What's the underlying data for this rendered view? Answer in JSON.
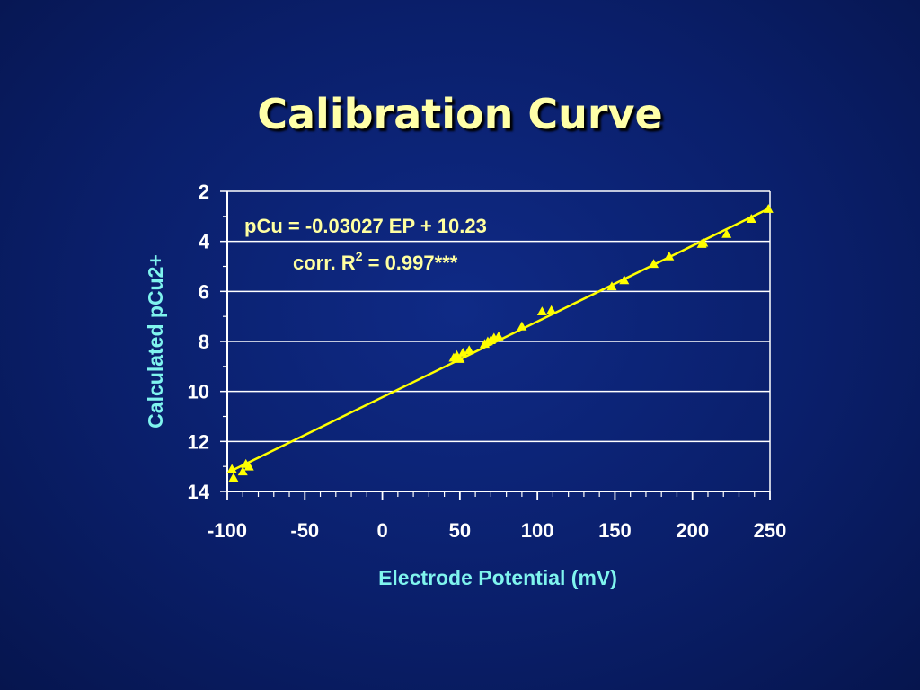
{
  "title": "Calibration Curve",
  "chart_data": {
    "type": "scatter",
    "xlabel": "Electrode Potential (mV)",
    "ylabel": "Calculated pCu2+",
    "xlim": [
      -100,
      250
    ],
    "ylim": [
      2,
      14
    ],
    "y_inverted": true,
    "xticks": [
      -100,
      -50,
      0,
      50,
      100,
      150,
      200,
      250
    ],
    "yticks": [
      2,
      4,
      6,
      8,
      10,
      12,
      14
    ],
    "grid": "horizontal",
    "annotation": {
      "equation": "pCu = -0.03027 EP + 10.23",
      "corr_prefix": "corr. R",
      "corr_sup": "2",
      "corr_suffix": " = 0.997***"
    },
    "fit_line": {
      "slope": -0.03027,
      "intercept": 10.23,
      "x_range": [
        -97,
        250
      ]
    },
    "points": [
      {
        "x": -97,
        "y": 13.1
      },
      {
        "x": -96,
        "y": 13.45
      },
      {
        "x": -90,
        "y": 13.2
      },
      {
        "x": -88,
        "y": 12.9
      },
      {
        "x": -86,
        "y": 13.0
      },
      {
        "x": 46,
        "y": 8.65
      },
      {
        "x": 48,
        "y": 8.55
      },
      {
        "x": 50,
        "y": 8.7
      },
      {
        "x": 52,
        "y": 8.45
      },
      {
        "x": 56,
        "y": 8.35
      },
      {
        "x": 66,
        "y": 8.1
      },
      {
        "x": 68,
        "y": 8.0
      },
      {
        "x": 70,
        "y": 7.95
      },
      {
        "x": 72,
        "y": 7.85
      },
      {
        "x": 75,
        "y": 7.8
      },
      {
        "x": 90,
        "y": 7.4
      },
      {
        "x": 103,
        "y": 6.8
      },
      {
        "x": 109,
        "y": 6.75
      },
      {
        "x": 148,
        "y": 5.8
      },
      {
        "x": 156,
        "y": 5.55
      },
      {
        "x": 175,
        "y": 4.9
      },
      {
        "x": 185,
        "y": 4.6
      },
      {
        "x": 206,
        "y": 4.1
      },
      {
        "x": 207,
        "y": 4.05
      },
      {
        "x": 222,
        "y": 3.7
      },
      {
        "x": 238,
        "y": 3.1
      },
      {
        "x": 249,
        "y": 2.7
      }
    ],
    "colors": {
      "marker": "#ffff00",
      "line": "#ffff00",
      "grid": "#ffffff",
      "axis": "#ffffff",
      "axis_title": "#7ff4ee",
      "annotation": "#ffffa0",
      "title": "#ffffa8"
    }
  }
}
